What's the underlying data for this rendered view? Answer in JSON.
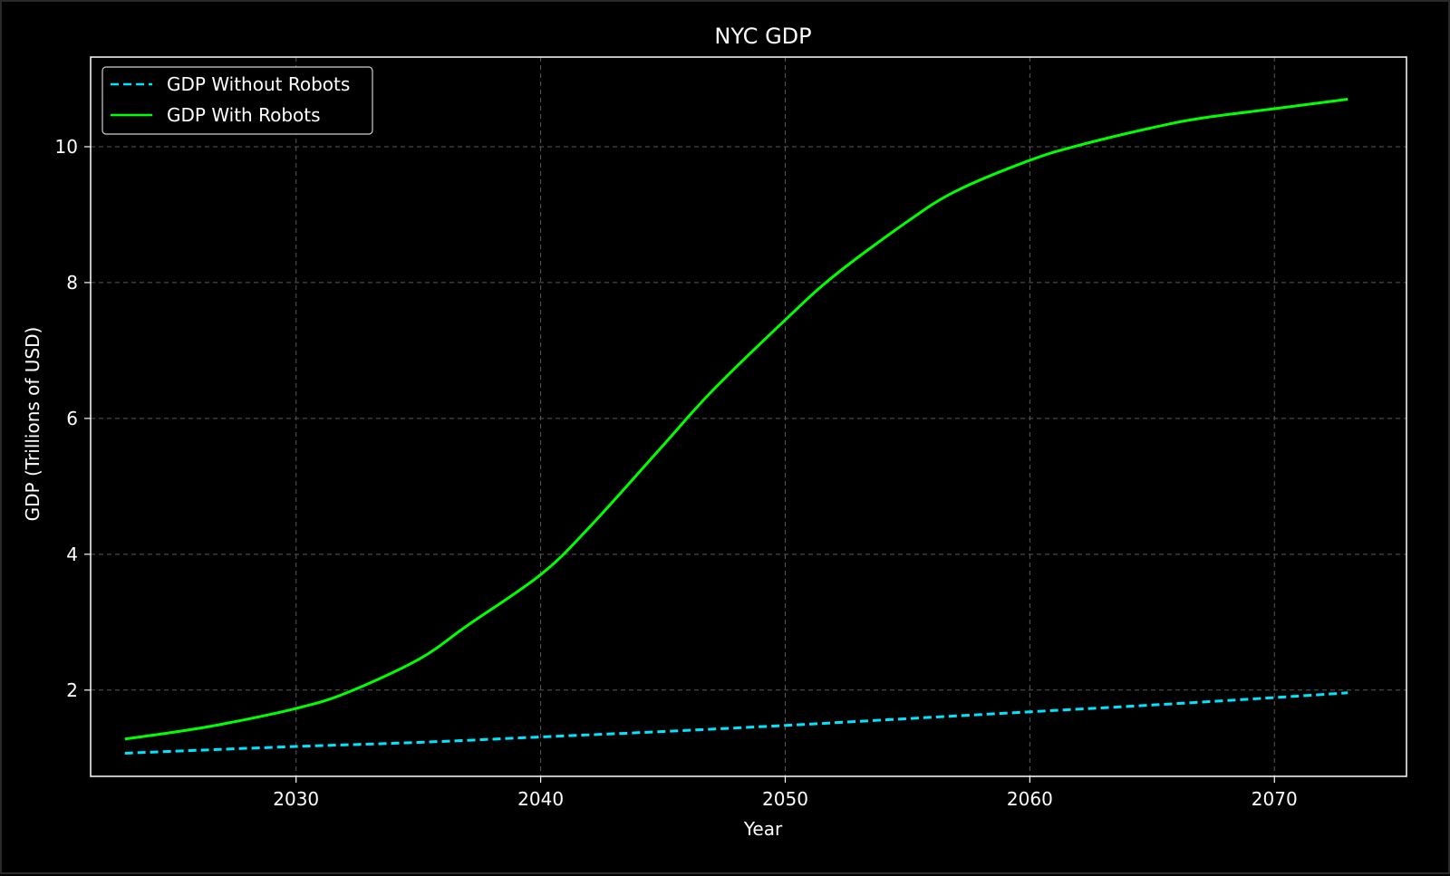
{
  "chart_data": {
    "type": "line",
    "title": "NYC GDP",
    "xlabel": "Year",
    "ylabel": "GDP (Trillions of USD)",
    "xlim": [
      2021.6,
      2075.4
    ],
    "ylim": [
      0.73,
      11.32
    ],
    "xticks": [
      2030,
      2040,
      2050,
      2060,
      2070
    ],
    "yticks": [
      2,
      4,
      6,
      8,
      10
    ],
    "grid": true,
    "legend_position": "top-left",
    "series": [
      {
        "name": "GDP Without Robots",
        "style": "dashed",
        "color": "#00e5ff",
        "x": [
          2023,
          2025,
          2030,
          2035,
          2040,
          2045,
          2050,
          2055,
          2060,
          2065,
          2070,
          2073
        ],
        "values": [
          1.07,
          1.1,
          1.17,
          1.23,
          1.31,
          1.39,
          1.48,
          1.58,
          1.68,
          1.78,
          1.89,
          1.96
        ]
      },
      {
        "name": "GDP With Robots",
        "style": "solid",
        "color": "#00ff00",
        "x": [
          2023,
          2025,
          2027,
          2030,
          2032,
          2035,
          2037,
          2040,
          2042,
          2045,
          2047,
          2050,
          2052,
          2055,
          2057,
          2060,
          2062,
          2065,
          2067,
          2070,
          2073
        ],
        "values": [
          1.28,
          1.38,
          1.5,
          1.73,
          1.95,
          2.45,
          2.95,
          3.7,
          4.4,
          5.6,
          6.4,
          7.45,
          8.1,
          8.9,
          9.35,
          9.8,
          10.02,
          10.28,
          10.42,
          10.56,
          10.7
        ]
      }
    ]
  }
}
